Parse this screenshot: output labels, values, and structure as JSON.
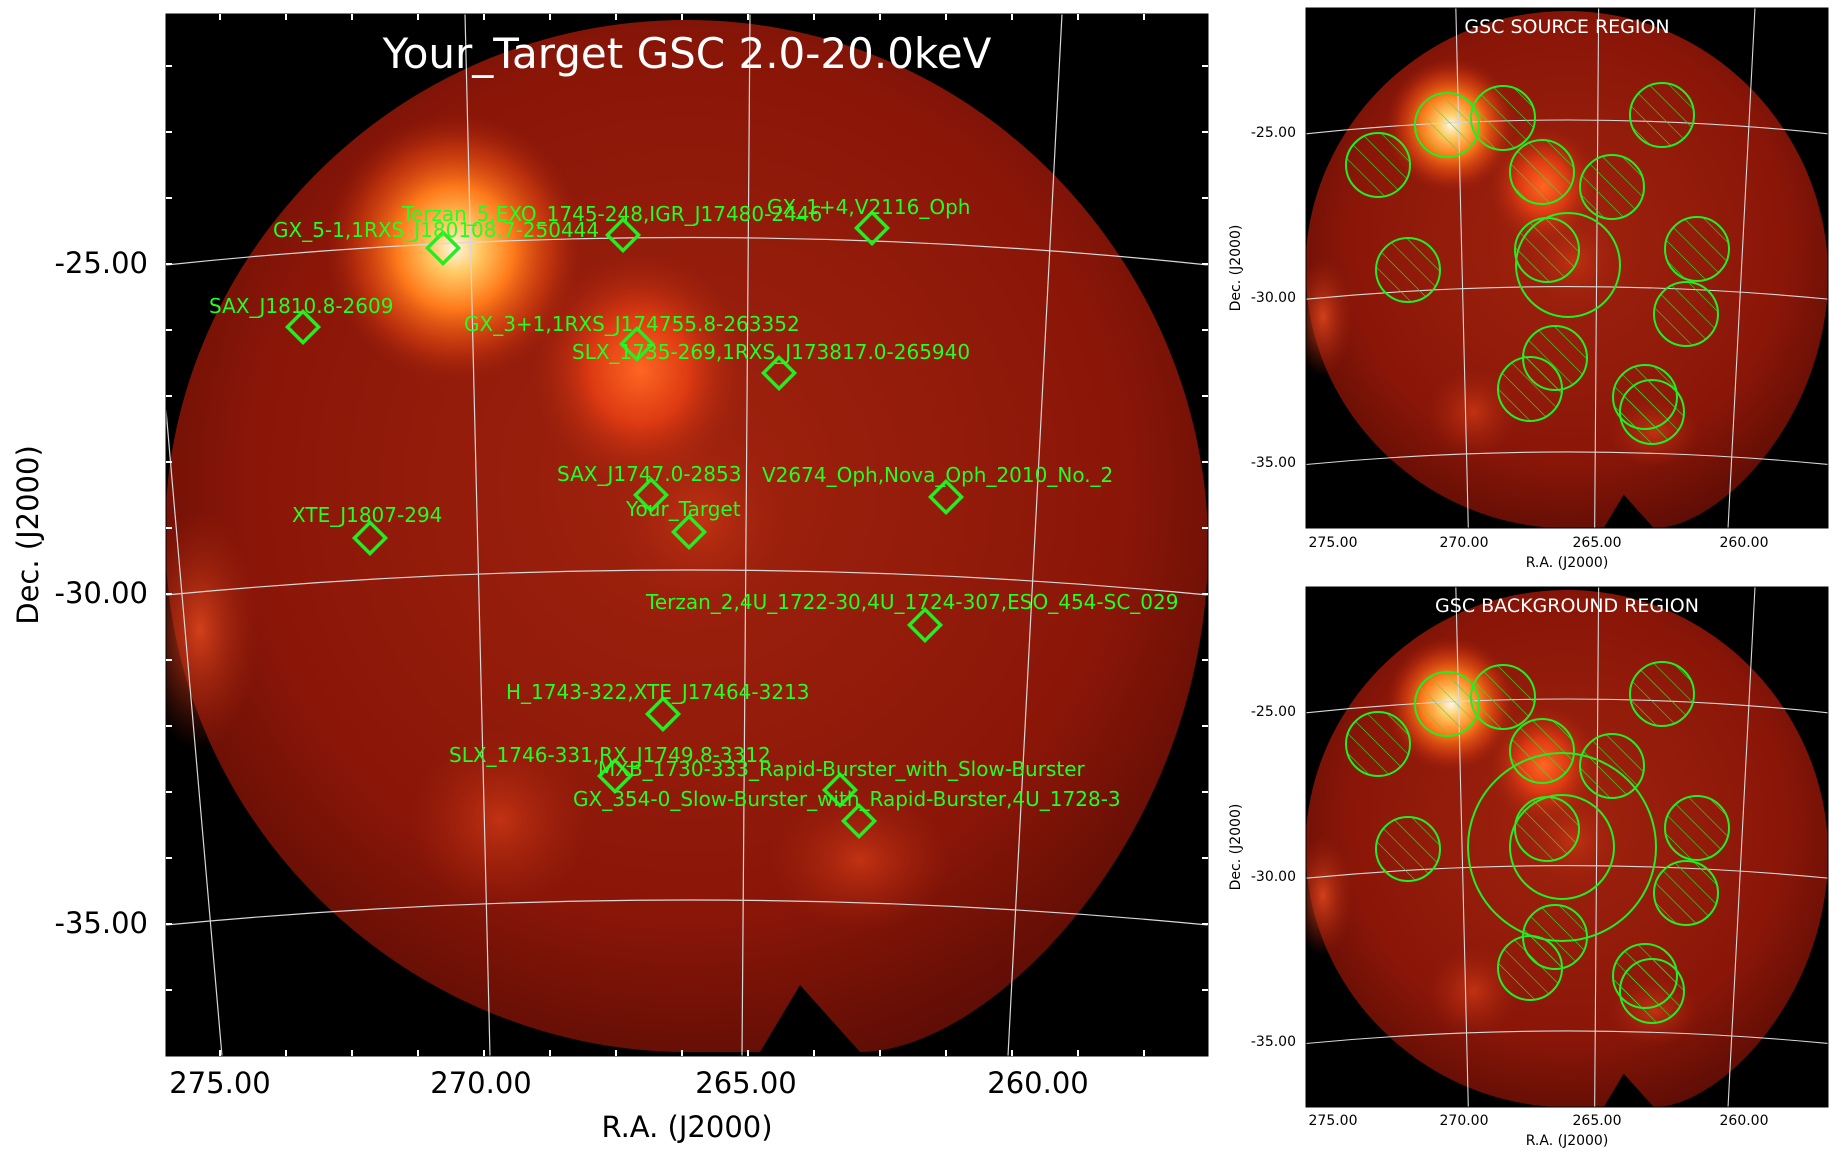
{
  "main_panel": {
    "title": "Your_Target GSC 2.0-20.0keV",
    "xlabel": "R.A. (J2000)",
    "ylabel": "Dec. (J2000)",
    "ra_ticks": [
      "275.00",
      "270.00",
      "265.00",
      "260.00"
    ],
    "dec_ticks": [
      "-25.00",
      "-30.00",
      "-35.00"
    ],
    "sources": [
      {
        "label": "GX_5-1,1RXS_J180108.7-250444"
      },
      {
        "label": "Terzan_5,EXO_1745-248,IGR_J17480-2446"
      },
      {
        "label": "GX_1+4,V2116_Oph"
      },
      {
        "label": "SAX_J1810.8-2609"
      },
      {
        "label": "GX_3+1,1RXS_J174755.8-263352"
      },
      {
        "label": "SLX_1735-269,1RXS_J173817.0-265940"
      },
      {
        "label": "SAX_J1747.0-2853"
      },
      {
        "label": "V2674_Oph,Nova_Oph_2010_No._2"
      },
      {
        "label": "Your_Target"
      },
      {
        "label": "XTE_J1807-294"
      },
      {
        "label": "Terzan_2,4U_1722-30,4U_1724-307,ESO_454-SC_029"
      },
      {
        "label": "H_1743-322,XTE_J17464-3213"
      },
      {
        "label": "SLX_1746-331,RX_J1749.8-3312"
      },
      {
        "label": "MXB_1730-333_Rapid-Burster_with_Slow-Burster"
      },
      {
        "label": "GX_354-0_Slow-Burster_with_Rapid-Burster,4U_1728-3"
      }
    ]
  },
  "source_panel": {
    "title": "GSC SOURCE REGION",
    "xlabel": "R.A. (J2000)",
    "ylabel": "Dec. (J2000)",
    "ra_ticks": [
      "275.00",
      "270.00",
      "265.00",
      "260.00"
    ],
    "dec_ticks": [
      "-25.00",
      "-30.00",
      "-35.00"
    ]
  },
  "background_panel": {
    "title": "GSC BACKGROUND REGION",
    "xlabel": "R.A. (J2000)",
    "ylabel": "Dec. (J2000)",
    "ra_ticks": [
      "275.00",
      "270.00",
      "265.00",
      "260.00"
    ],
    "dec_ticks": [
      "-25.00",
      "-30.00",
      "-35.00"
    ]
  },
  "colors": {
    "marker": "#22ee22",
    "label": "#22ff22",
    "grid": "#d8d8d8",
    "sky_base": "#8a1608",
    "background": "#000000"
  }
}
